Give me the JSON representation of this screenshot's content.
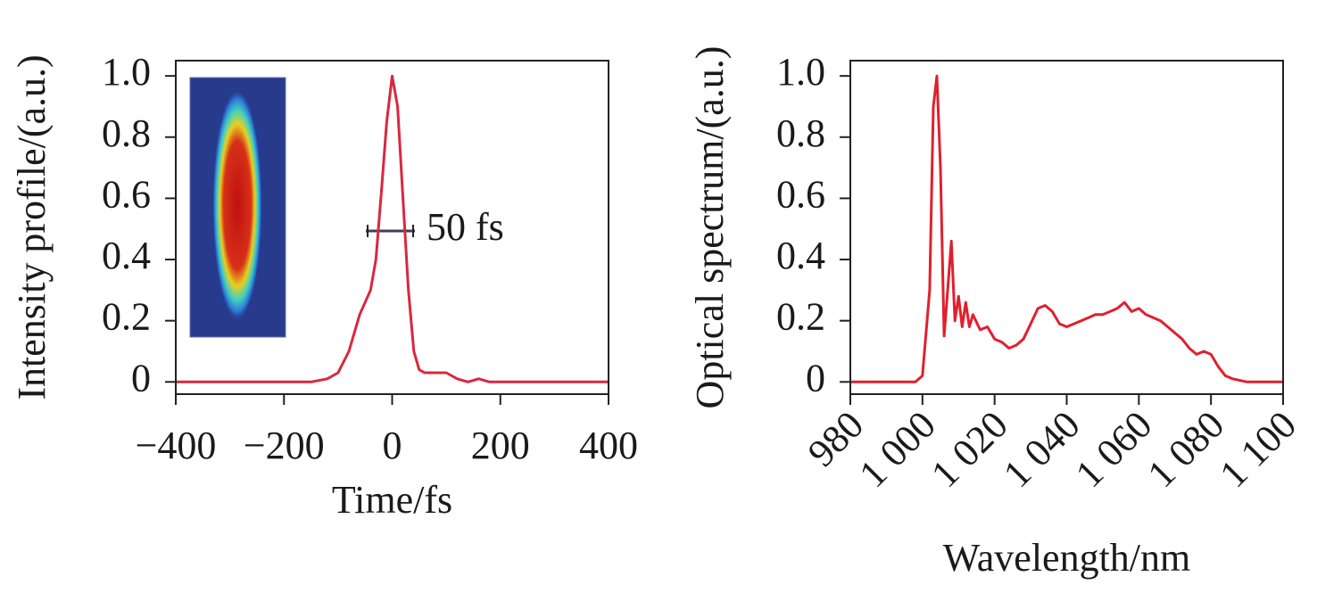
{
  "chart_data": [
    {
      "type": "line",
      "xlabel": "Time/fs",
      "ylabel": "Intensity profile/(a.u.)",
      "annotation": "50 fs",
      "color": "#d9283f",
      "x": [
        -400,
        -200,
        -150,
        -120,
        -100,
        -80,
        -60,
        -40,
        -30,
        -20,
        -10,
        0,
        10,
        20,
        30,
        40,
        50,
        60,
        80,
        100,
        120,
        140,
        160,
        180,
        200,
        400
      ],
      "values": [
        0,
        0,
        0,
        0.01,
        0.03,
        0.1,
        0.22,
        0.3,
        0.4,
        0.62,
        0.85,
        1.0,
        0.9,
        0.6,
        0.3,
        0.1,
        0.04,
        0.03,
        0.03,
        0.03,
        0.01,
        0,
        0.01,
        0,
        0,
        0
      ],
      "xlim": [
        -400,
        400
      ],
      "ylim": [
        -0.04,
        1.05
      ],
      "xticks": [
        {
          "value": -400,
          "label": "−400"
        },
        {
          "value": -200,
          "label": "−200"
        },
        0,
        200,
        400
      ],
      "yticks": [
        0,
        0.2,
        0.4,
        0.6,
        0.8,
        {
          "value": 1,
          "label": "1.0"
        }
      ]
    },
    {
      "type": "line",
      "xlabel": "Wavelength/nm",
      "ylabel": "Optical spectrum/(a.u.)",
      "color": "#e0202e",
      "xtick_rotation": 45,
      "x": [
        980,
        998,
        1000,
        1002,
        1003,
        1004,
        1005,
        1006,
        1007,
        1008,
        1009,
        1010,
        1011,
        1012,
        1013,
        1014,
        1016,
        1018,
        1020,
        1022,
        1024,
        1026,
        1028,
        1030,
        1032,
        1034,
        1036,
        1038,
        1040,
        1042,
        1044,
        1046,
        1048,
        1050,
        1052,
        1054,
        1056,
        1058,
        1060,
        1062,
        1064,
        1066,
        1068,
        1070,
        1072,
        1074,
        1076,
        1078,
        1080,
        1082,
        1084,
        1086,
        1090,
        1100
      ],
      "values": [
        0,
        0,
        0.02,
        0.3,
        0.9,
        1.0,
        0.7,
        0.15,
        0.3,
        0.46,
        0.2,
        0.28,
        0.18,
        0.26,
        0.18,
        0.22,
        0.17,
        0.18,
        0.14,
        0.13,
        0.11,
        0.12,
        0.14,
        0.19,
        0.24,
        0.25,
        0.23,
        0.19,
        0.18,
        0.19,
        0.2,
        0.21,
        0.22,
        0.22,
        0.23,
        0.24,
        0.26,
        0.23,
        0.24,
        0.22,
        0.21,
        0.2,
        0.18,
        0.16,
        0.14,
        0.11,
        0.09,
        0.1,
        0.09,
        0.05,
        0.02,
        0.01,
        0,
        0
      ],
      "xlim": [
        980,
        1100
      ],
      "ylim": [
        -0.04,
        1.05
      ],
      "xticks": [
        980,
        {
          "value": 1000,
          "label": "1 000"
        },
        {
          "value": 1020,
          "label": "1 020"
        },
        {
          "value": 1040,
          "label": "1 040"
        },
        {
          "value": 1060,
          "label": "1 060"
        },
        {
          "value": 1080,
          "label": "1 080"
        },
        {
          "value": 1100,
          "label": "1 100"
        }
      ],
      "yticks": [
        0,
        0.2,
        0.4,
        0.6,
        0.8,
        {
          "value": 1,
          "label": "1.0"
        }
      ]
    }
  ]
}
